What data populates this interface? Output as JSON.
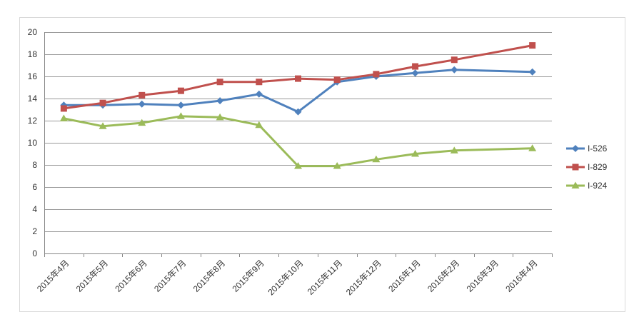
{
  "chart_data": {
    "type": "line",
    "title": "",
    "xlabel": "",
    "ylabel": "",
    "ylim": [
      0,
      20
    ],
    "yticks": [
      0,
      2,
      4,
      6,
      8,
      10,
      12,
      14,
      16,
      18,
      20
    ],
    "grid": true,
    "legend_position": "right",
    "categories": [
      "2015年4月",
      "2015年5月",
      "2015年6月",
      "2015年7月",
      "2015年8月",
      "2015年9月",
      "2015年10月",
      "2015年11月",
      "2015年12月",
      "2016年1月",
      "2016年2月",
      "2016年3月",
      "2016年4月"
    ],
    "series": [
      {
        "name": "I-526",
        "color": "#4f81bd",
        "marker": "diamond",
        "points": [
          [
            0,
            13.4
          ],
          [
            1,
            13.4
          ],
          [
            2,
            13.5
          ],
          [
            3,
            13.4
          ],
          [
            4,
            13.8
          ],
          [
            5,
            14.4
          ],
          [
            6,
            12.8
          ],
          [
            7,
            15.5
          ],
          [
            8,
            16.0
          ],
          [
            9,
            16.3
          ],
          [
            10,
            16.6
          ],
          [
            12,
            16.4
          ]
        ]
      },
      {
        "name": "I-829",
        "color": "#c0504d",
        "marker": "square",
        "points": [
          [
            0,
            13.1
          ],
          [
            1,
            13.6
          ],
          [
            2,
            14.3
          ],
          [
            3,
            14.7
          ],
          [
            4,
            15.5
          ],
          [
            5,
            15.5
          ],
          [
            6,
            15.8
          ],
          [
            7,
            15.7
          ],
          [
            8,
            16.2
          ],
          [
            9,
            16.9
          ],
          [
            10,
            17.5
          ],
          [
            12,
            18.8
          ]
        ]
      },
      {
        "name": "I-924",
        "color": "#9bbb59",
        "marker": "triangle",
        "points": [
          [
            0,
            12.2
          ],
          [
            1,
            11.5
          ],
          [
            2,
            11.8
          ],
          [
            3,
            12.4
          ],
          [
            4,
            12.3
          ],
          [
            5,
            11.6
          ],
          [
            6,
            7.9
          ],
          [
            7,
            7.9
          ],
          [
            8,
            8.5
          ],
          [
            9,
            9.0
          ],
          [
            10,
            9.3
          ],
          [
            12,
            9.5
          ]
        ]
      }
    ]
  }
}
